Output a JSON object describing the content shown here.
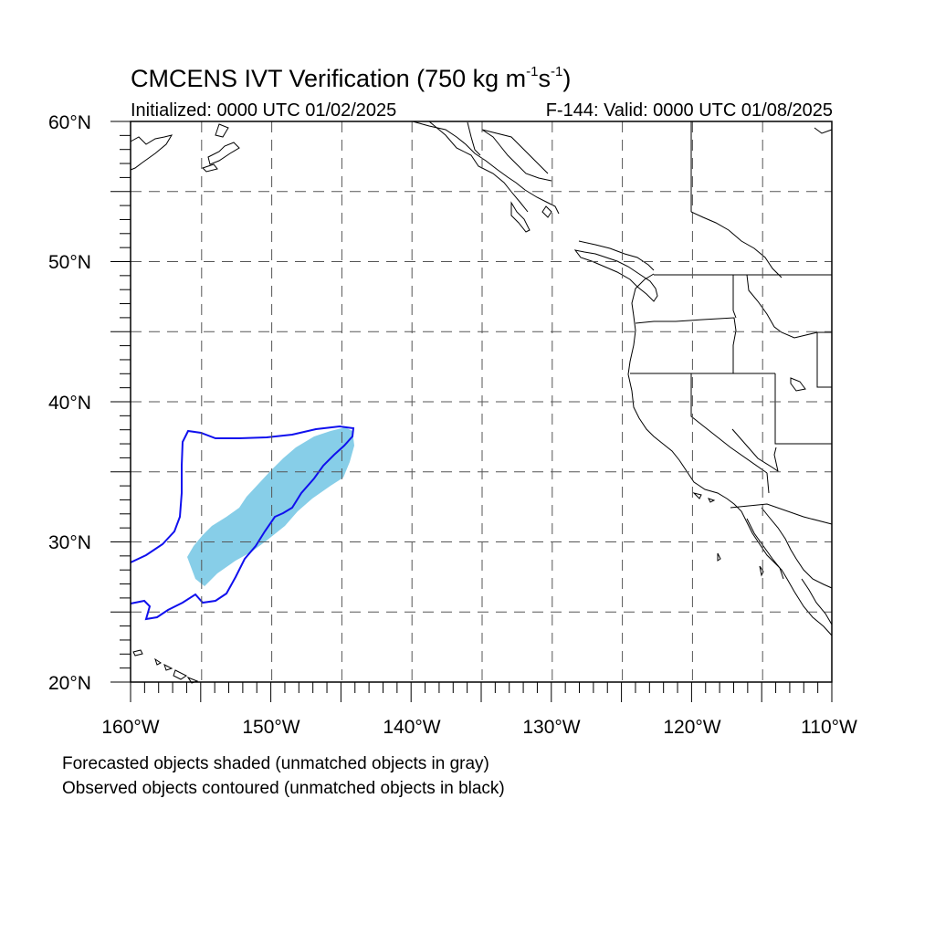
{
  "title": {
    "prefix": "CMCENS IVT Verification (750 kg m",
    "exp1": "-1",
    "mid": "s",
    "exp2": "-1",
    "suffix": ")"
  },
  "subtitle_left": "Initialized: 0000 UTC 01/02/2025",
  "subtitle_right": "F-144: Valid: 0000 UTC 01/08/2025",
  "lat_labels": [
    "60°N",
    "50°N",
    "40°N",
    "30°N",
    "20°N"
  ],
  "lon_labels": [
    "160°W",
    "150°W",
    "140°W",
    "130°W",
    "120°W",
    "110°W"
  ],
  "notes": [
    "Forecasted objects shaded (unmatched objects in gray)",
    "Observed objects contoured (unmatched objects in black)"
  ],
  "map": {
    "lon_range": [
      -160,
      -110
    ],
    "lat_range": [
      20,
      60
    ],
    "grid_spacing_deg": 5,
    "forecast_color": "#87CEE8",
    "observed_color": "#1010EE"
  }
}
